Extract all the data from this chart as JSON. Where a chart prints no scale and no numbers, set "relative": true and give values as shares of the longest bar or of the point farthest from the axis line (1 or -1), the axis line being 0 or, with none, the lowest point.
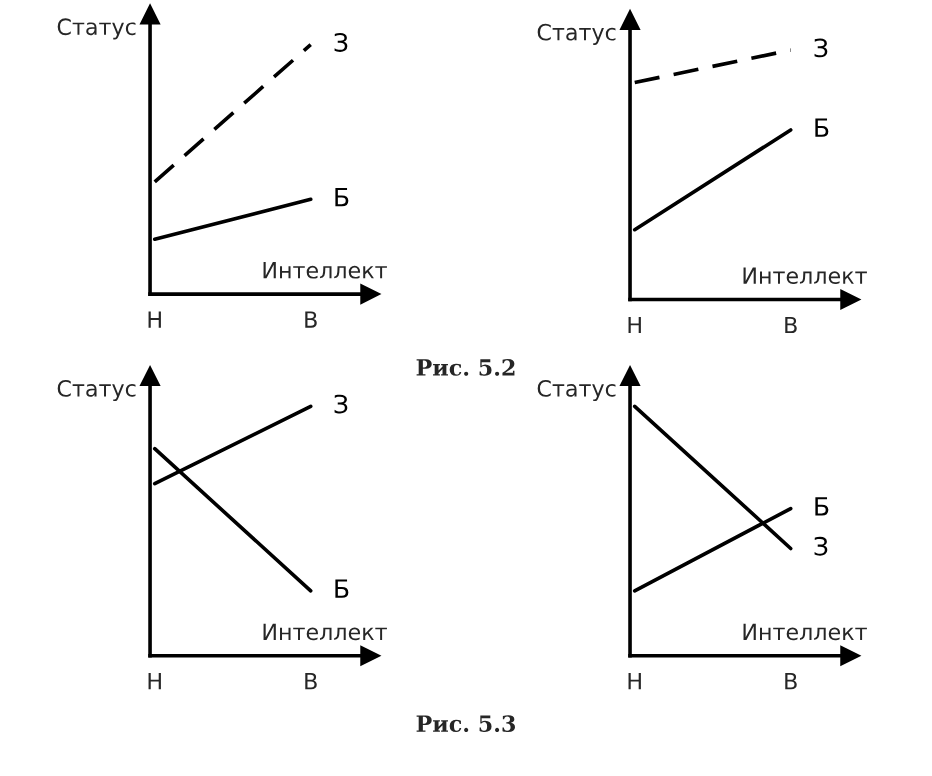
{
  "chart_data": [
    {
      "type": "line",
      "relative": true,
      "ylabel": "Статус",
      "xlabel": "Интеллект",
      "categories": [
        "Н",
        "В"
      ],
      "series": [
        {
          "name": "З",
          "color": "#000000",
          "values": [
            0.45,
            1.0
          ],
          "line_style": "dashed"
        },
        {
          "name": "Б",
          "color": "#000000",
          "values": [
            0.22,
            0.38
          ],
          "line_style": "solid"
        }
      ]
    },
    {
      "type": "line",
      "relative": true,
      "ylabel": "Статус",
      "xlabel": "Интеллект",
      "categories": [
        "Н",
        "В"
      ],
      "annotations": [
        "Рис. 5.2"
      ],
      "series": [
        {
          "name": "З",
          "color": "#000000",
          "values": [
            0.87,
            1.0
          ],
          "line_style": "dashed"
        },
        {
          "name": "Б",
          "color": "#000000",
          "values": [
            0.28,
            0.68
          ],
          "line_style": "solid"
        }
      ]
    },
    {
      "type": "line",
      "relative": true,
      "ylabel": "Статус",
      "xlabel": "Интеллект",
      "categories": [
        "Н",
        "В"
      ],
      "series": [
        {
          "name": "З",
          "color": "#000000",
          "values": [
            0.69,
            1.0
          ],
          "line_style": "solid"
        },
        {
          "name": "Б",
          "color": "#000000",
          "values": [
            0.83,
            0.26
          ],
          "line_style": "solid"
        }
      ]
    },
    {
      "type": "line",
      "relative": true,
      "ylabel": "Статус",
      "xlabel": "Интеллект",
      "categories": [
        "Н",
        "В"
      ],
      "annotations": [
        "Рис. 5.3"
      ],
      "series": [
        {
          "name": "З",
          "color": "#000000",
          "values": [
            1.0,
            0.43
          ],
          "line_style": "solid"
        },
        {
          "name": "Б",
          "color": "#000000",
          "values": [
            0.26,
            0.59
          ],
          "line_style": "solid"
        }
      ]
    }
  ]
}
